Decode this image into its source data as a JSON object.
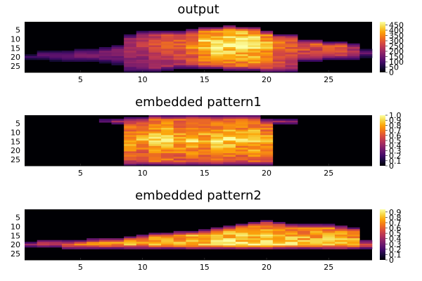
{
  "chart_data": [
    {
      "type": "heatmap",
      "title": "output",
      "x_ticks": [
        5,
        10,
        15,
        20,
        25
      ],
      "y_ticks": [
        5,
        10,
        15,
        20,
        25
      ],
      "xlim": [
        0.5,
        28.5
      ],
      "ylim": [
        0.5,
        28.5
      ],
      "colorbar_ticks": [
        "0",
        "50",
        "100",
        "150",
        "200",
        "250",
        "300",
        "350",
        "400",
        "450"
      ],
      "colorbar_range": [
        0,
        480
      ],
      "colormap": "inferno",
      "zmax": 480,
      "grid_size": [
        28,
        28
      ],
      "column_extent_rows": [
        [
          19,
          21
        ],
        [
          17,
          21
        ],
        [
          17,
          22
        ],
        [
          17,
          22
        ],
        [
          16,
          22
        ],
        [
          16,
          22
        ],
        [
          15,
          23
        ],
        [
          14,
          24
        ],
        [
          8,
          28
        ],
        [
          6,
          28
        ],
        [
          6,
          28
        ],
        [
          6,
          27
        ],
        [
          6,
          26
        ],
        [
          5,
          26
        ],
        [
          4,
          26
        ],
        [
          4,
          26
        ],
        [
          3,
          27
        ],
        [
          4,
          27
        ],
        [
          4,
          27
        ],
        [
          6,
          28
        ],
        [
          8,
          28
        ],
        [
          8,
          28
        ],
        [
          11,
          22
        ],
        [
          11,
          22
        ],
        [
          12,
          21
        ],
        [
          12,
          21
        ],
        [
          13,
          21
        ],
        [
          16,
          20
        ]
      ],
      "column_intensity": [
        150,
        150,
        150,
        180,
        180,
        180,
        170,
        180,
        220,
        240,
        280,
        300,
        320,
        360,
        440,
        460,
        460,
        470,
        460,
        400,
        350,
        320,
        300,
        290,
        290,
        300,
        240,
        150
      ],
      "row_peak": 13
    },
    {
      "type": "heatmap",
      "title": "embedded pattern1",
      "x_ticks": [
        5,
        10,
        15,
        20,
        25
      ],
      "y_ticks": [
        5,
        10,
        15,
        20,
        25
      ],
      "xlim": [
        0.5,
        28.5
      ],
      "ylim": [
        0.5,
        28.5
      ],
      "colorbar_ticks": [
        "0",
        "0.1",
        "0.2",
        "0.3",
        "0.4",
        "0.5",
        "0.6",
        "0.7",
        "0.8",
        "0.9",
        "1.0"
      ],
      "colorbar_range": [
        0,
        1.0
      ],
      "colormap": "inferno",
      "zmax": 1.0,
      "grid_size": [
        28,
        28
      ],
      "column_extent_rows": [
        null,
        null,
        null,
        null,
        null,
        null,
        [
          3,
          4
        ],
        [
          3,
          5
        ],
        [
          2,
          28
        ],
        [
          2,
          28
        ],
        [
          1,
          28
        ],
        [
          1,
          28
        ],
        [
          1,
          28
        ],
        [
          1,
          28
        ],
        [
          1,
          28
        ],
        [
          1,
          28
        ],
        [
          1,
          28
        ],
        [
          1,
          28
        ],
        [
          1,
          28
        ],
        [
          3,
          28
        ],
        [
          3,
          5
        ],
        [
          3,
          5
        ],
        null,
        null,
        null,
        null,
        null,
        null
      ],
      "column_intensity": [
        0,
        0,
        0,
        0,
        0,
        0,
        0.7,
        0.75,
        0.8,
        0.8,
        0.9,
        0.9,
        0.85,
        0.9,
        0.85,
        0.9,
        0.9,
        0.85,
        0.9,
        0.8,
        0.75,
        0.7,
        0,
        0,
        0,
        0,
        0,
        0
      ],
      "row_peak": 14
    },
    {
      "type": "heatmap",
      "title": "embedded pattern2",
      "x_ticks": [
        5,
        10,
        15,
        20,
        25
      ],
      "y_ticks": [
        5,
        10,
        15,
        20,
        25
      ],
      "xlim": [
        0.5,
        28.5
      ],
      "ylim": [
        0.5,
        28.5
      ],
      "colorbar_ticks": [
        "0",
        "0.1",
        "0.2",
        "0.3",
        "0.4",
        "0.5",
        "0.6",
        "0.7",
        "0.8",
        "0.9"
      ],
      "colorbar_range": [
        0,
        0.95
      ],
      "colormap": "inferno",
      "zmax": 0.95,
      "grid_size": [
        28,
        28
      ],
      "column_extent_rows": [
        [
          19,
          21
        ],
        [
          18,
          21
        ],
        [
          18,
          21
        ],
        [
          18,
          22
        ],
        [
          18,
          22
        ],
        [
          17,
          22
        ],
        [
          17,
          22
        ],
        [
          17,
          22
        ],
        [
          16,
          22
        ],
        [
          15,
          22
        ],
        [
          14,
          22
        ],
        [
          14,
          22
        ],
        [
          13,
          22
        ],
        [
          13,
          22
        ],
        [
          12,
          22
        ],
        [
          11,
          22
        ],
        [
          10,
          22
        ],
        [
          9,
          22
        ],
        [
          8,
          22
        ],
        [
          7,
          22
        ],
        [
          8,
          22
        ],
        [
          9,
          22
        ],
        [
          9,
          22
        ],
        [
          9,
          22
        ],
        [
          9,
          22
        ],
        [
          10,
          22
        ],
        [
          11,
          22
        ],
        [
          18,
          22
        ]
      ],
      "column_intensity": [
        0.5,
        0.6,
        0.6,
        0.65,
        0.65,
        0.65,
        0.7,
        0.7,
        0.75,
        0.75,
        0.8,
        0.8,
        0.8,
        0.85,
        0.85,
        0.85,
        0.9,
        0.9,
        0.9,
        0.9,
        0.9,
        0.88,
        0.85,
        0.85,
        0.85,
        0.85,
        0.8,
        0.6
      ],
      "row_peak": 20
    }
  ]
}
